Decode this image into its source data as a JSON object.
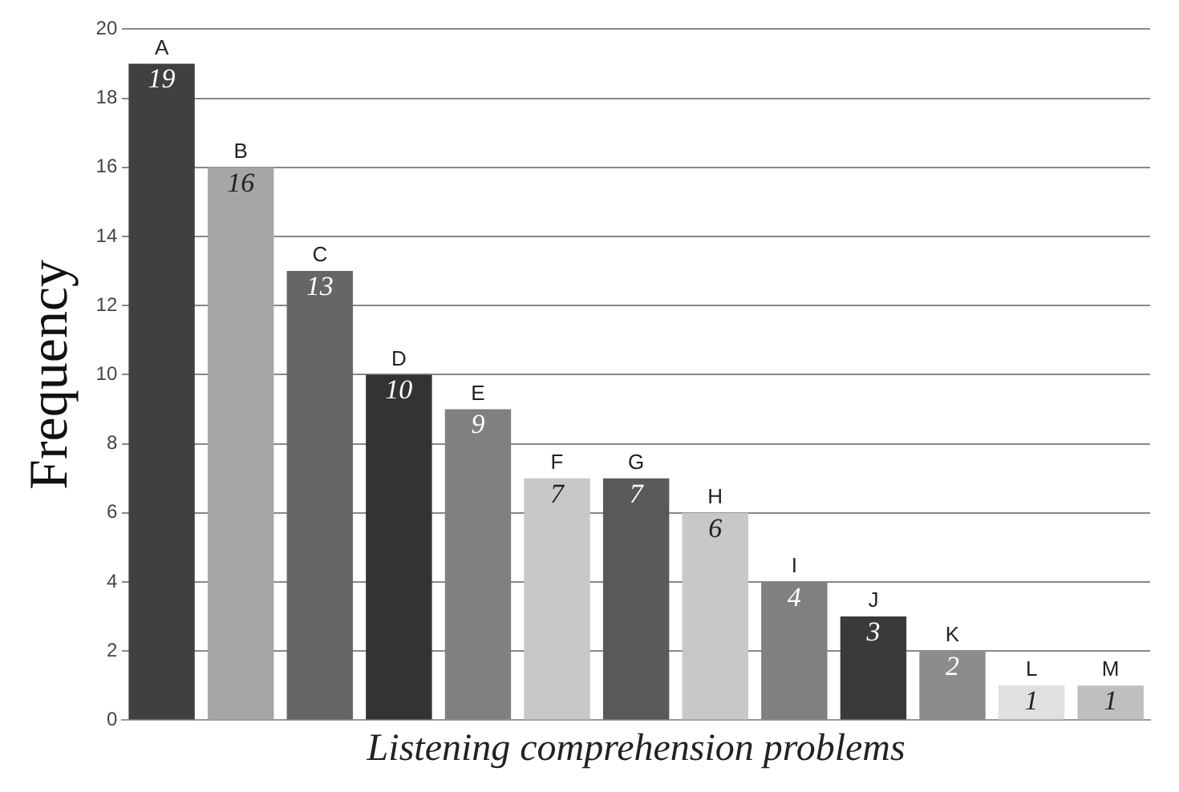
{
  "chart_data": {
    "type": "bar",
    "xlabel": "Listening comprehension problems",
    "ylabel": "Frequency",
    "categories": [
      "A",
      "B",
      "C",
      "D",
      "E",
      "F",
      "G",
      "H",
      "I",
      "J",
      "K",
      "L",
      "M"
    ],
    "values": [
      19,
      16,
      13,
      10,
      9,
      7,
      7,
      6,
      4,
      3,
      2,
      1,
      1
    ],
    "colors": [
      "#404040",
      "#a6a6a6",
      "#666666",
      "#333333",
      "#808080",
      "#c8c8c8",
      "#595959",
      "#c8c8c8",
      "#808080",
      "#3a3a3a",
      "#8c8c8c",
      "#e0e0e0",
      "#bfbfbf"
    ],
    "ylim": [
      0,
      20
    ],
    "yticks": [
      0,
      2,
      4,
      6,
      8,
      10,
      12,
      14,
      16,
      18,
      20
    ],
    "grid": "y",
    "data_labels": true
  }
}
